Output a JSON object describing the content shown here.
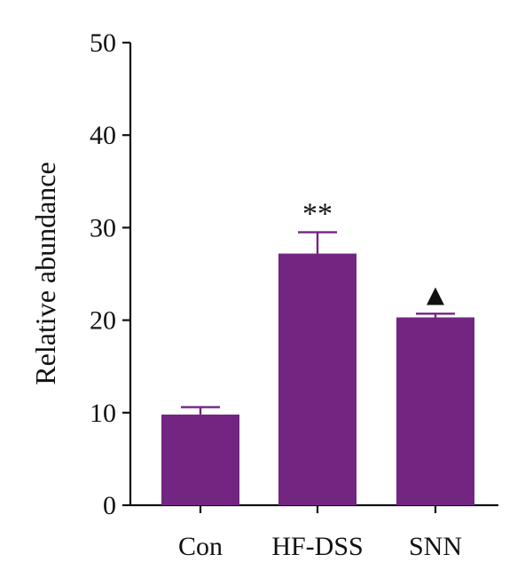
{
  "chart_data": {
    "type": "bar",
    "title": "",
    "xlabel": "",
    "ylabel": "Relative abundance",
    "ylim": [
      0,
      50
    ],
    "yticks": [
      0,
      10,
      20,
      30,
      40,
      50
    ],
    "categories": [
      "Con",
      "HF-DSS",
      "SNN"
    ],
    "values": [
      9.8,
      27.2,
      20.3
    ],
    "errors": [
      0.8,
      2.3,
      0.4
    ],
    "annotations": [
      "",
      "**",
      "▲"
    ],
    "grid": false,
    "bar_color": "#732582",
    "axis_color": "#111111"
  }
}
